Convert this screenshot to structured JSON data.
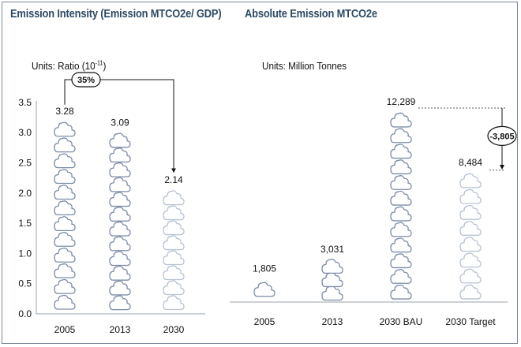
{
  "titles": {
    "left": "Emission Intensity (Emission MTCO2e/ GDP)",
    "right": "Absolute Emission MTCO2e"
  },
  "units": {
    "left_text": "Units: Ratio (10",
    "left_exp": "-11",
    "left_close": ")",
    "right": "Units: Million Tonnes"
  },
  "annotations": {
    "intensity_reduction": "35%",
    "absolute_reduction": "-3,805"
  },
  "colors": {
    "title": "#2c4a64",
    "cloud_dark": "#7e8ca8",
    "cloud_light": "#b9c3d2",
    "axis": "#9aa3ad",
    "badge_fill": "#1f1f1f"
  },
  "chart_data": [
    {
      "type": "bar",
      "mark": "stacked-cloud-icons",
      "title": "Emission Intensity (Emission MTCO2e/ GDP)",
      "units": "Ratio (10^-11)",
      "categories": [
        "2005",
        "2013",
        "2030"
      ],
      "values": [
        3.28,
        3.09,
        2.14
      ],
      "value_labels": [
        "3.28",
        "3.09",
        "2.14"
      ],
      "ylim": [
        0,
        3.5
      ],
      "yticks": [
        "0.0",
        "0.5",
        "1.0",
        "1.5",
        "2.0",
        "2.5",
        "3.0",
        "3.5"
      ],
      "bar_style": [
        "dark",
        "dark",
        "light"
      ],
      "annotation": {
        "from": "2005",
        "to": "2030",
        "label": "35%"
      }
    },
    {
      "type": "bar",
      "mark": "stacked-cloud-icons",
      "title": "Absolute Emission MTCO2e",
      "units": "Million Tonnes",
      "categories": [
        "2005",
        "2013",
        "2030 BAU",
        "2030 Target"
      ],
      "values": [
        1805,
        3031,
        12289,
        8484
      ],
      "value_labels": [
        "1,805",
        "3,031",
        "12,289",
        "8,484"
      ],
      "ylim": [
        0,
        12700
      ],
      "bar_style": [
        "dark",
        "dark",
        "dark",
        "light"
      ],
      "annotation": {
        "from": "2030 BAU",
        "to": "2030 Target",
        "label": "-3,805"
      }
    }
  ]
}
